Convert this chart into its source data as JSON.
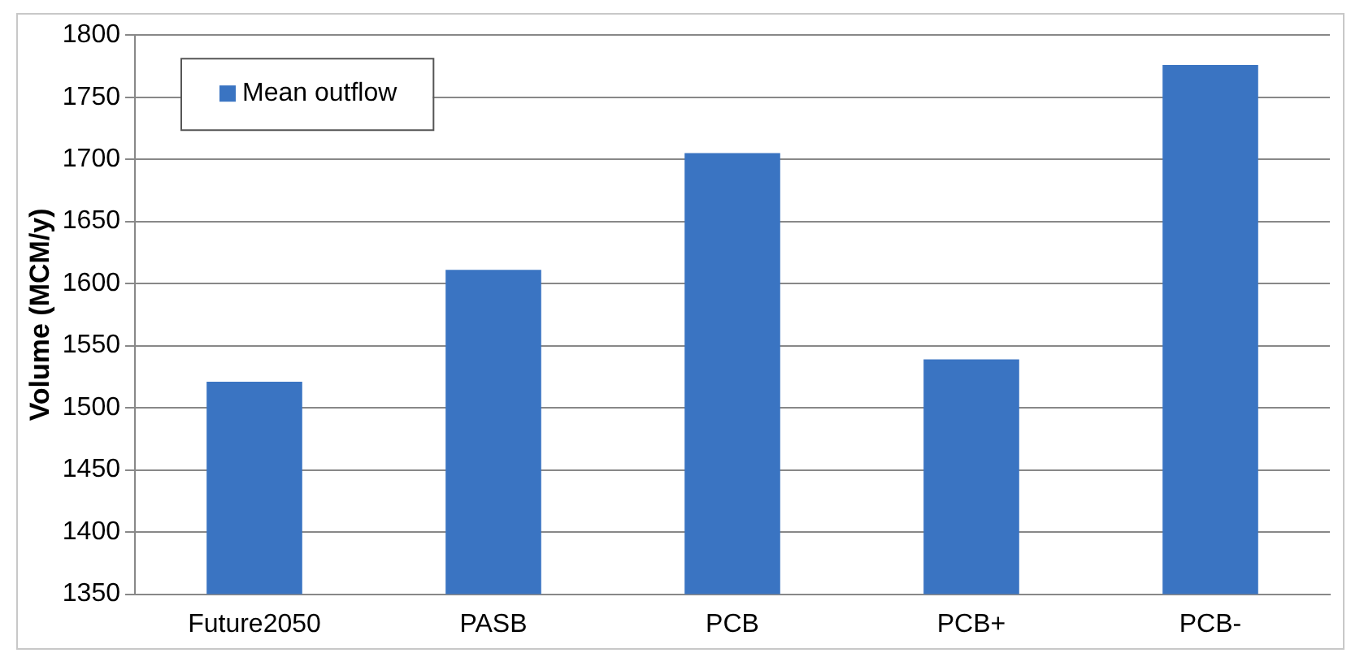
{
  "chart_data": {
    "type": "bar",
    "ylabel": "Volume (MCM/y)",
    "categories": [
      "Future2050",
      "PASB",
      "PCB",
      "PCB+",
      "PCB-"
    ],
    "series": [
      {
        "name": "Mean outflow",
        "color": "#3a74c2",
        "values": [
          1521,
          1611,
          1705,
          1539,
          1776
        ]
      }
    ],
    "ylim": [
      1350,
      1800
    ],
    "yticks": [
      1350,
      1400,
      1450,
      1500,
      1550,
      1600,
      1650,
      1700,
      1750,
      1800
    ],
    "grid": "y",
    "legend": "top left"
  }
}
